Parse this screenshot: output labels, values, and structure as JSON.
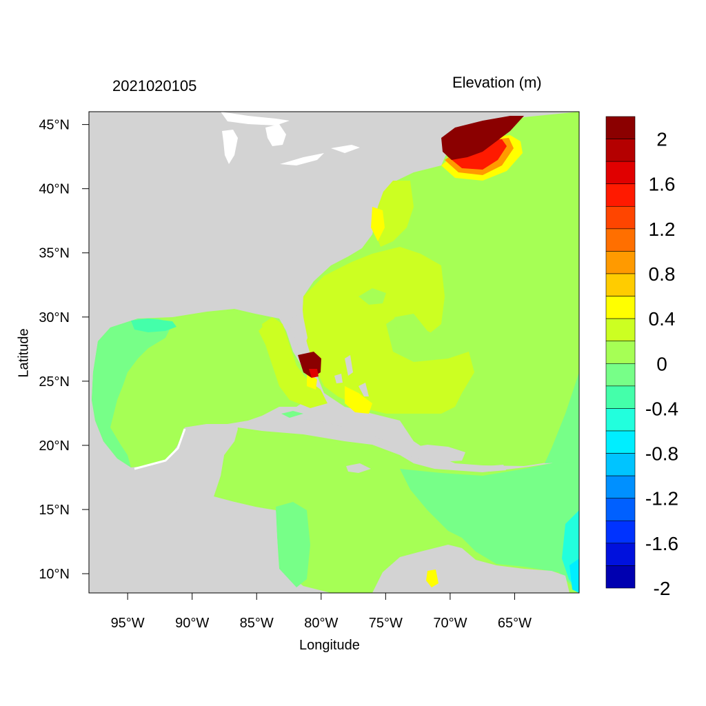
{
  "titles": {
    "left": "2021020105",
    "right": "Elevation (m)"
  },
  "axes": {
    "xlabel": "Longitude",
    "ylabel": "Latitude",
    "x_ticks": [
      "95°W",
      "90°W",
      "85°W",
      "80°W",
      "75°W",
      "70°W",
      "65°W"
    ],
    "x_tick_values": [
      -95,
      -90,
      -85,
      -80,
      -75,
      -70,
      -65
    ],
    "y_ticks": [
      "10°N",
      "15°N",
      "20°N",
      "25°N",
      "30°N",
      "35°N",
      "40°N",
      "45°N"
    ],
    "y_tick_values": [
      10,
      15,
      20,
      25,
      30,
      35,
      40,
      45
    ],
    "xlim": [
      -98,
      -60
    ],
    "ylim": [
      8.5,
      46
    ]
  },
  "colorbar": {
    "labels": [
      "2",
      "1.6",
      "1.2",
      "0.8",
      "0.4",
      "0",
      "-0.4",
      "-0.8",
      "-1.2",
      "-1.6",
      "-2"
    ],
    "colors": [
      "#8b0000",
      "#b40000",
      "#e00000",
      "#ff1a00",
      "#ff4500",
      "#ff6f00",
      "#ff9a00",
      "#ffcc00",
      "#ffff00",
      "#ccff22",
      "#a6ff55",
      "#77ff88",
      "#44ffaa",
      "#22ffdd",
      "#00eeff",
      "#00c4ff",
      "#0090ff",
      "#0060ff",
      "#0033ff",
      "#0011dd",
      "#0000b0"
    ]
  },
  "map": {
    "land_color": "#d3d3d3",
    "ocean_base_color": "#a6ff55"
  }
}
